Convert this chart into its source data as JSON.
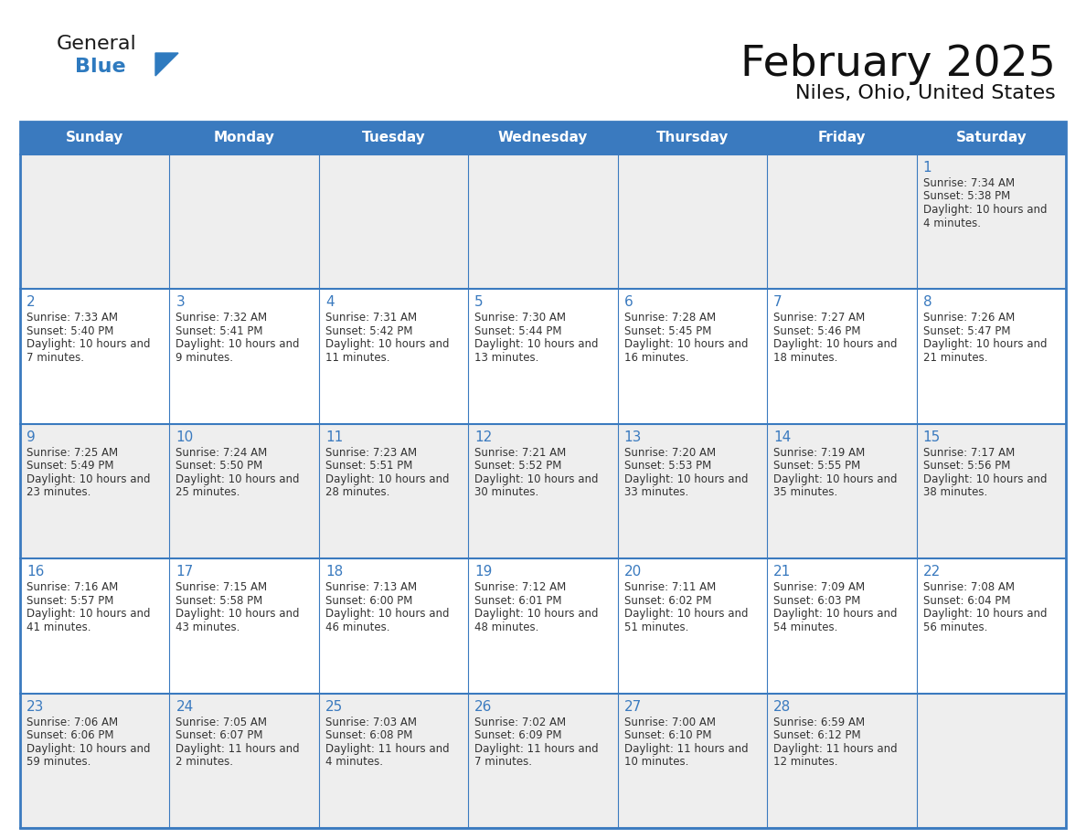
{
  "title": "February 2025",
  "subtitle": "Niles, Ohio, United States",
  "days_of_week": [
    "Sunday",
    "Monday",
    "Tuesday",
    "Wednesday",
    "Thursday",
    "Friday",
    "Saturday"
  ],
  "header_bg": "#3a7abf",
  "header_text": "#FFFFFF",
  "cell_bg_light": "#eeeeee",
  "cell_bg_white": "#FFFFFF",
  "border_color": "#3a7abf",
  "day_number_color": "#3a7abf",
  "text_color": "#333333",
  "logo_general_color": "#1a1a1a",
  "logo_blue_color": "#2E7ABF",
  "calendar_data": [
    [
      null,
      null,
      null,
      null,
      null,
      null,
      {
        "day": 1,
        "sunrise": "7:34 AM",
        "sunset": "5:38 PM",
        "daylight": "10 hours and 4 minutes."
      }
    ],
    [
      {
        "day": 2,
        "sunrise": "7:33 AM",
        "sunset": "5:40 PM",
        "daylight": "10 hours and 7 minutes."
      },
      {
        "day": 3,
        "sunrise": "7:32 AM",
        "sunset": "5:41 PM",
        "daylight": "10 hours and 9 minutes."
      },
      {
        "day": 4,
        "sunrise": "7:31 AM",
        "sunset": "5:42 PM",
        "daylight": "10 hours and 11 minutes."
      },
      {
        "day": 5,
        "sunrise": "7:30 AM",
        "sunset": "5:44 PM",
        "daylight": "10 hours and 13 minutes."
      },
      {
        "day": 6,
        "sunrise": "7:28 AM",
        "sunset": "5:45 PM",
        "daylight": "10 hours and 16 minutes."
      },
      {
        "day": 7,
        "sunrise": "7:27 AM",
        "sunset": "5:46 PM",
        "daylight": "10 hours and 18 minutes."
      },
      {
        "day": 8,
        "sunrise": "7:26 AM",
        "sunset": "5:47 PM",
        "daylight": "10 hours and 21 minutes."
      }
    ],
    [
      {
        "day": 9,
        "sunrise": "7:25 AM",
        "sunset": "5:49 PM",
        "daylight": "10 hours and 23 minutes."
      },
      {
        "day": 10,
        "sunrise": "7:24 AM",
        "sunset": "5:50 PM",
        "daylight": "10 hours and 25 minutes."
      },
      {
        "day": 11,
        "sunrise": "7:23 AM",
        "sunset": "5:51 PM",
        "daylight": "10 hours and 28 minutes."
      },
      {
        "day": 12,
        "sunrise": "7:21 AM",
        "sunset": "5:52 PM",
        "daylight": "10 hours and 30 minutes."
      },
      {
        "day": 13,
        "sunrise": "7:20 AM",
        "sunset": "5:53 PM",
        "daylight": "10 hours and 33 minutes."
      },
      {
        "day": 14,
        "sunrise": "7:19 AM",
        "sunset": "5:55 PM",
        "daylight": "10 hours and 35 minutes."
      },
      {
        "day": 15,
        "sunrise": "7:17 AM",
        "sunset": "5:56 PM",
        "daylight": "10 hours and 38 minutes."
      }
    ],
    [
      {
        "day": 16,
        "sunrise": "7:16 AM",
        "sunset": "5:57 PM",
        "daylight": "10 hours and 41 minutes."
      },
      {
        "day": 17,
        "sunrise": "7:15 AM",
        "sunset": "5:58 PM",
        "daylight": "10 hours and 43 minutes."
      },
      {
        "day": 18,
        "sunrise": "7:13 AM",
        "sunset": "6:00 PM",
        "daylight": "10 hours and 46 minutes."
      },
      {
        "day": 19,
        "sunrise": "7:12 AM",
        "sunset": "6:01 PM",
        "daylight": "10 hours and 48 minutes."
      },
      {
        "day": 20,
        "sunrise": "7:11 AM",
        "sunset": "6:02 PM",
        "daylight": "10 hours and 51 minutes."
      },
      {
        "day": 21,
        "sunrise": "7:09 AM",
        "sunset": "6:03 PM",
        "daylight": "10 hours and 54 minutes."
      },
      {
        "day": 22,
        "sunrise": "7:08 AM",
        "sunset": "6:04 PM",
        "daylight": "10 hours and 56 minutes."
      }
    ],
    [
      {
        "day": 23,
        "sunrise": "7:06 AM",
        "sunset": "6:06 PM",
        "daylight": "10 hours and 59 minutes."
      },
      {
        "day": 24,
        "sunrise": "7:05 AM",
        "sunset": "6:07 PM",
        "daylight": "11 hours and 2 minutes."
      },
      {
        "day": 25,
        "sunrise": "7:03 AM",
        "sunset": "6:08 PM",
        "daylight": "11 hours and 4 minutes."
      },
      {
        "day": 26,
        "sunrise": "7:02 AM",
        "sunset": "6:09 PM",
        "daylight": "11 hours and 7 minutes."
      },
      {
        "day": 27,
        "sunrise": "7:00 AM",
        "sunset": "6:10 PM",
        "daylight": "11 hours and 10 minutes."
      },
      {
        "day": 28,
        "sunrise": "6:59 AM",
        "sunset": "6:12 PM",
        "daylight": "11 hours and 12 minutes."
      },
      null
    ]
  ]
}
